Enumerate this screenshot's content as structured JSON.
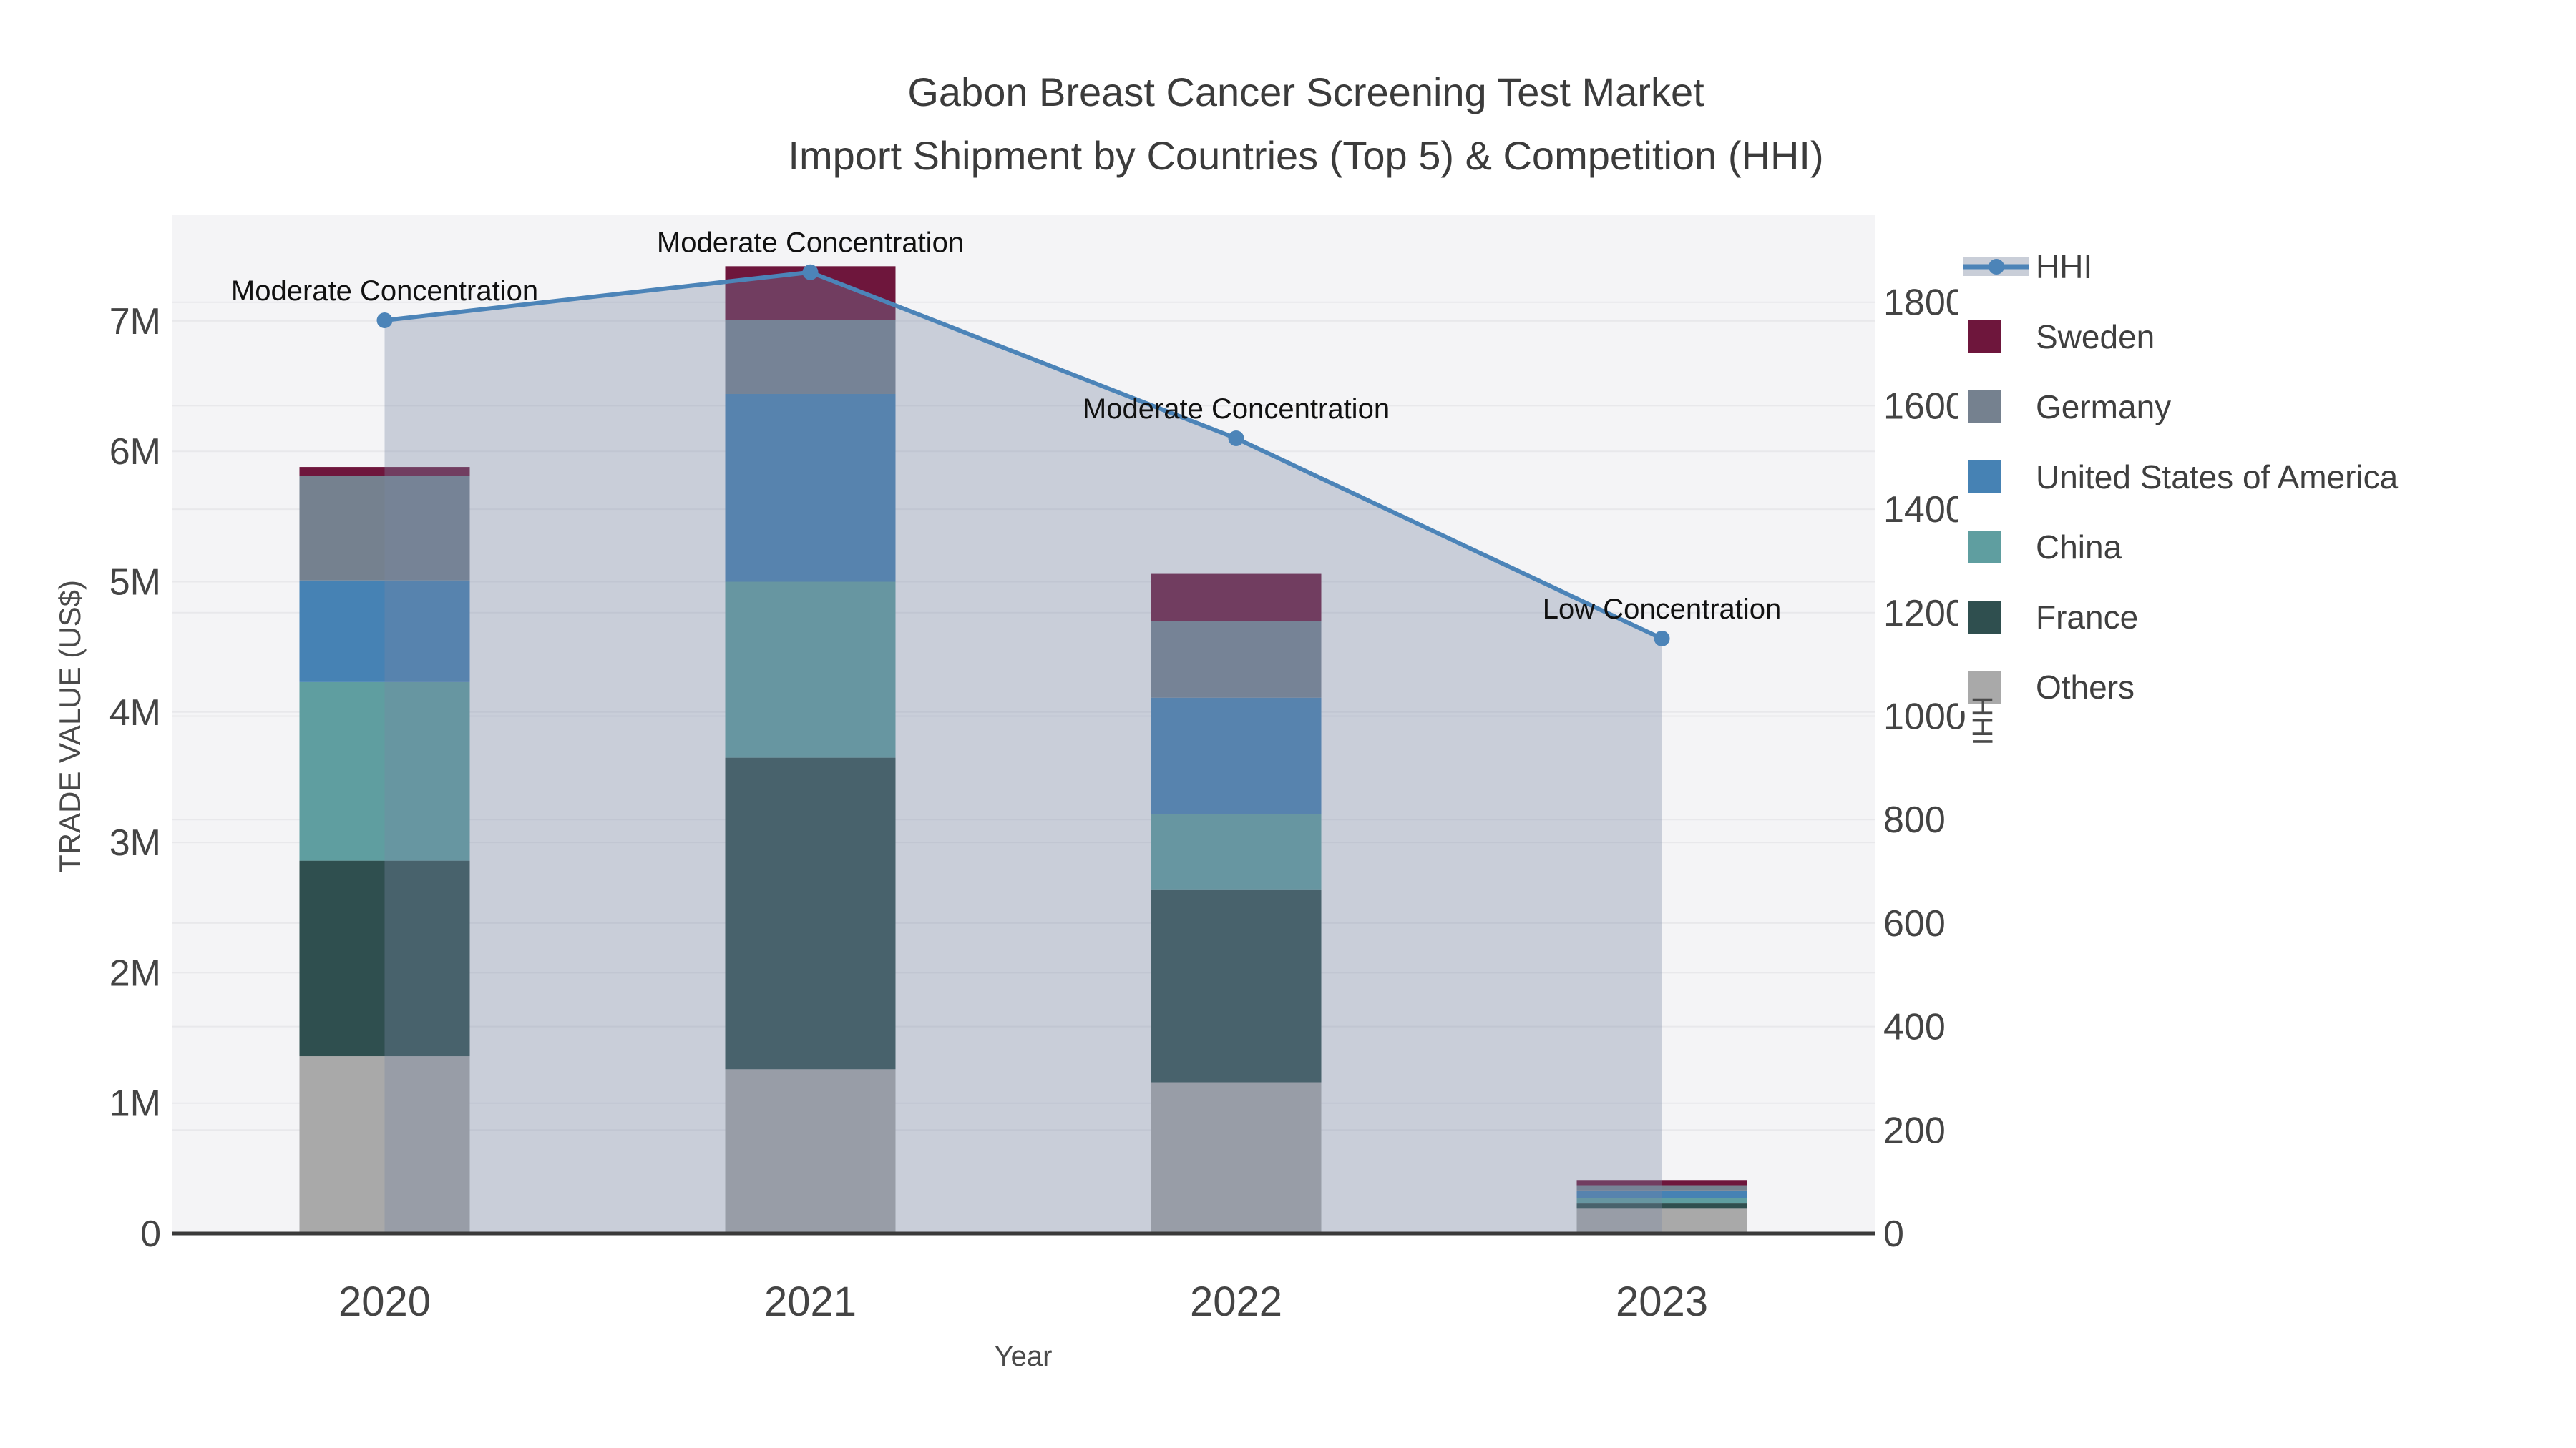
{
  "title": {
    "line1": "Gabon Breast Cancer Screening Test Market",
    "line2": "Import Shipment by Countries (Top 5) & Competition (HHI)"
  },
  "axes": {
    "x": {
      "title": "Year",
      "tick_labels": [
        "2020",
        "2021",
        "2022",
        "2023"
      ]
    },
    "y_left": {
      "title": "TRADE VALUE (US$)",
      "tick_labels": [
        "0",
        "1M",
        "2M",
        "3M",
        "4M",
        "5M",
        "6M",
        "7M"
      ],
      "range_m_usd": [
        0,
        7.82
      ],
      "grid": true
    },
    "y_right": {
      "title": "HHI",
      "tick_labels": [
        "0",
        "200",
        "400",
        "600",
        "800",
        "1000",
        "1200",
        "1400",
        "1600",
        "1800"
      ],
      "range": [
        0,
        1956
      ],
      "grid": true
    }
  },
  "legend": {
    "position": "top-right-outside",
    "items": [
      {
        "label": "HHI",
        "type": "line",
        "color": "#4C84B8"
      },
      {
        "label": "Sweden",
        "type": "swatch",
        "color": "#6E163C"
      },
      {
        "label": "Germany",
        "type": "swatch",
        "color": "#75818F"
      },
      {
        "label": "United States of America",
        "type": "swatch",
        "color": "#4682B4"
      },
      {
        "label": "China",
        "type": "swatch",
        "color": "#5F9EA0"
      },
      {
        "label": "France",
        "type": "swatch",
        "color": "#2F4F4F"
      },
      {
        "label": "Others",
        "type": "swatch",
        "color": "#A9A9A9"
      }
    ]
  },
  "chart_data": {
    "type": "bar",
    "subtype": "stacked-bars-with-line-overlay",
    "categories": [
      "2020",
      "2021",
      "2022",
      "2023"
    ],
    "bar_value_unit": "million US$",
    "series": [
      {
        "name": "Others",
        "color": "#A9A9A9",
        "values": [
          1.36,
          1.26,
          1.16,
          0.19
        ]
      },
      {
        "name": "France",
        "color": "#2F4F4F",
        "values": [
          1.5,
          2.39,
          1.48,
          0.04
        ]
      },
      {
        "name": "China",
        "color": "#5F9EA0",
        "values": [
          1.37,
          1.35,
          0.58,
          0.04
        ]
      },
      {
        "name": "United States of America",
        "color": "#4682B4",
        "values": [
          0.78,
          1.44,
          0.89,
          0.06
        ]
      },
      {
        "name": "Germany",
        "color": "#75818F",
        "values": [
          0.8,
          0.57,
          0.59,
          0.04
        ]
      },
      {
        "name": "Sweden",
        "color": "#6E163C",
        "values": [
          0.07,
          0.41,
          0.36,
          0.04
        ]
      }
    ],
    "bar_totals": [
      5.88,
      7.42,
      5.06,
      0.41
    ],
    "line": {
      "name": "HHI",
      "axis": "right",
      "color": "#4C84B8",
      "area_fill": "rgba(119,134,162,0.35)",
      "values": [
        1765,
        1858,
        1537,
        1150
      ]
    },
    "annotations": [
      {
        "category": "2020",
        "label": "Moderate Concentration"
      },
      {
        "category": "2021",
        "label": "Moderate Concentration"
      },
      {
        "category": "2022",
        "label": "Moderate Concentration"
      },
      {
        "category": "2023",
        "label": "Low Concentration"
      }
    ]
  }
}
